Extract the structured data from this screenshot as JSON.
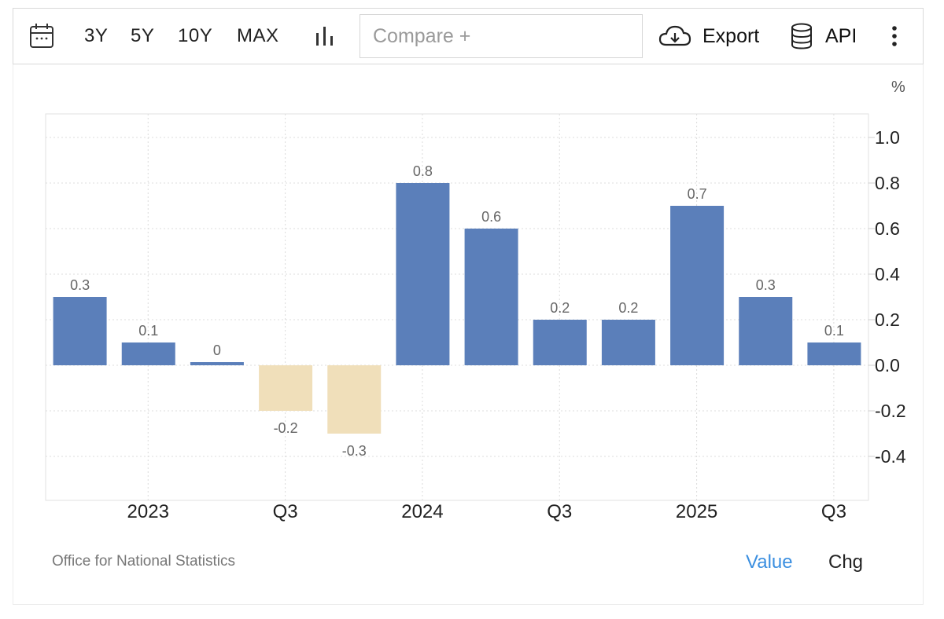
{
  "toolbar": {
    "ranges": [
      "3Y",
      "5Y",
      "10Y",
      "MAX"
    ],
    "compare_placeholder": "Compare +",
    "export_label": "Export",
    "api_label": "API"
  },
  "chart_data": {
    "type": "bar",
    "title": "",
    "unit": "%",
    "values": [
      0.3,
      0.1,
      0.0,
      -0.2,
      -0.3,
      0.8,
      0.6,
      0.2,
      0.2,
      0.7,
      0.3,
      0.1
    ],
    "value_labels": [
      "0.3",
      "0.1",
      "0",
      "-0.2",
      "-0.3",
      "0.8",
      "0.6",
      "0.2",
      "0.2",
      "0.7",
      "0.3",
      "0.1"
    ],
    "x_ticks": [
      {
        "label": "2023",
        "index": 1
      },
      {
        "label": "Q3",
        "index": 3
      },
      {
        "label": "2024",
        "index": 5
      },
      {
        "label": "Q3",
        "index": 7
      },
      {
        "label": "2025",
        "index": 9
      },
      {
        "label": "Q3",
        "index": 11
      }
    ],
    "y_ticks": [
      "1.0",
      "0.8",
      "0.6",
      "0.4",
      "0.2",
      "0.0",
      "-0.2",
      "-0.4"
    ],
    "ylim": [
      -0.6,
      1.1
    ],
    "colors": {
      "positive": "#5b7fba",
      "negative": "#f0dfba"
    },
    "xlabel": "",
    "ylabel": ""
  },
  "footer": {
    "source": "Office for National Statistics",
    "mode_value": "Value",
    "mode_chg": "Chg"
  }
}
